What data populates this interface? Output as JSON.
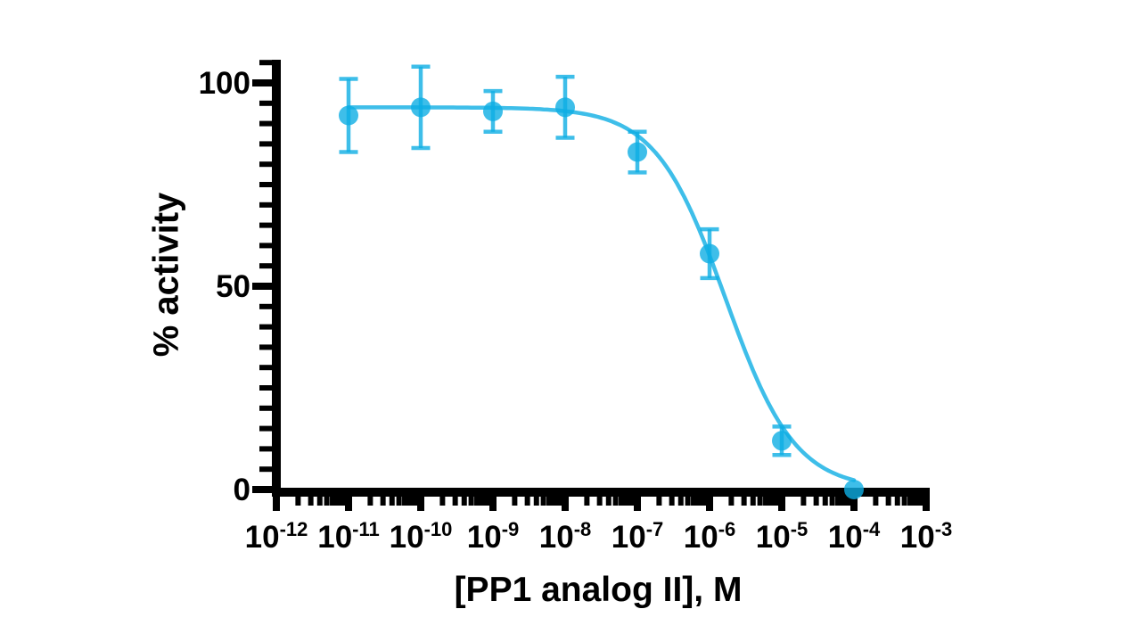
{
  "page": {
    "background": "#ffffff"
  },
  "chart_data": {
    "type": "scatter",
    "subtype": "dose-response-inhibition-curve",
    "title": "",
    "xlabel": "[PP1 analog II], M",
    "ylabel": "% activity",
    "x_scale": "log10",
    "x_tick_base": "10",
    "x_tick_exponents": [
      -12,
      -11,
      -10,
      -9,
      -8,
      -7,
      -6,
      -5,
      -4,
      -3
    ],
    "y_ticks": [
      0,
      50,
      100
    ],
    "y_minor_tick_step": 5,
    "y_axis_range": [
      0,
      105
    ],
    "grid": false,
    "legend": null,
    "axis_color": "#000000",
    "series": [
      {
        "name": "PP1 analog II",
        "color": "#0EAEE4",
        "opacity": 0.8,
        "marker": "circle",
        "points": [
          {
            "x_exponent": -11,
            "y": 92,
            "error": 9
          },
          {
            "x_exponent": -10,
            "y": 94,
            "error": 10
          },
          {
            "x_exponent": -9,
            "y": 93,
            "error": 5
          },
          {
            "x_exponent": -8,
            "y": 94,
            "error": 7.5
          },
          {
            "x_exponent": -7,
            "y": 83,
            "error": 5
          },
          {
            "x_exponent": -6,
            "y": 58,
            "error": 6
          },
          {
            "x_exponent": -5,
            "y": 12,
            "error": 3.5
          },
          {
            "x_exponent": -4,
            "y": 0,
            "error": 0
          }
        ],
        "fit_curve": {
          "model": "sigmoid_inhibition",
          "top": 94,
          "bottom": 0,
          "log_ic50": -5.78,
          "hill": 0.9,
          "x_start_exponent": -11,
          "x_end_exponent": -4
        }
      }
    ]
  }
}
